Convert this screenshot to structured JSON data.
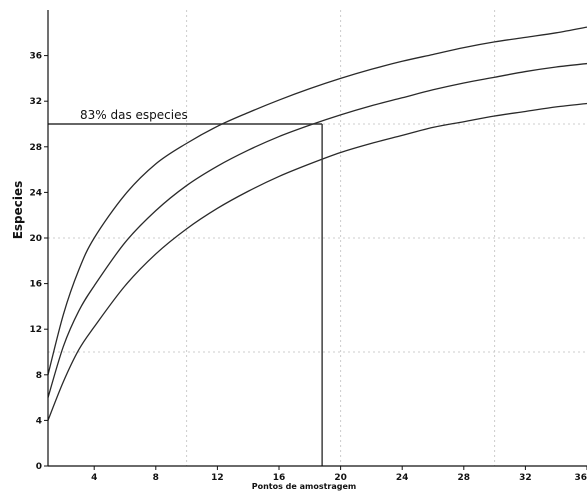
{
  "chart_data": {
    "type": "line",
    "title": "",
    "xlabel": "Pontos de amostragem",
    "ylabel": "Especies",
    "xlim": [
      1,
      36
    ],
    "ylim": [
      0,
      40
    ],
    "x_ticks": [
      4,
      8,
      12,
      16,
      20,
      24,
      28,
      32,
      36
    ],
    "y_ticks": [
      0,
      4,
      8,
      12,
      16,
      20,
      24,
      28,
      32,
      36
    ],
    "grid": true,
    "legend": "none",
    "series": [
      {
        "role": "upper-bound",
        "x": [
          1,
          2,
          3,
          4,
          6,
          8,
          10,
          12,
          14,
          16,
          18,
          20,
          22,
          24,
          26,
          28,
          30,
          32,
          34,
          36
        ],
        "y": [
          8,
          13.3,
          17.2,
          20,
          23.8,
          26.5,
          28.3,
          29.8,
          31,
          32.1,
          33.1,
          34,
          34.8,
          35.5,
          36.1,
          36.7,
          37.2,
          37.6,
          38,
          38.5
        ]
      },
      {
        "role": "mean",
        "x": [
          1,
          2,
          3,
          4,
          6,
          8,
          10,
          12,
          14,
          16,
          18,
          20,
          22,
          24,
          26,
          28,
          30,
          32,
          34,
          36
        ],
        "y": [
          6,
          10.5,
          13.6,
          15.8,
          19.6,
          22.4,
          24.6,
          26.3,
          27.7,
          28.9,
          29.9,
          30.8,
          31.6,
          32.3,
          33,
          33.6,
          34.1,
          34.6,
          35,
          35.3
        ]
      },
      {
        "role": "lower-bound",
        "x": [
          1,
          2,
          3,
          4,
          6,
          8,
          10,
          12,
          14,
          16,
          18,
          20,
          22,
          24,
          26,
          28,
          30,
          32,
          34,
          36
        ],
        "y": [
          4,
          7.4,
          10.2,
          12.2,
          15.8,
          18.6,
          20.8,
          22.6,
          24.1,
          25.4,
          26.5,
          27.5,
          28.3,
          29,
          29.7,
          30.2,
          30.7,
          31.1,
          31.5,
          31.8
        ]
      }
    ],
    "reference_line": {
      "x": 18.8,
      "y": 30,
      "label": "83% das especies"
    },
    "colors": {
      "curve": "#2a2a2a",
      "axis": "#111111",
      "grid": "#cccccc",
      "reference": "#333333"
    }
  }
}
